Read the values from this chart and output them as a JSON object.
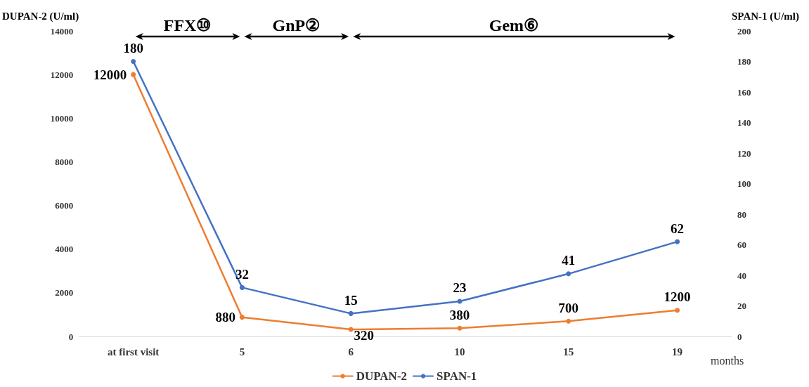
{
  "chart_data": {
    "type": "line",
    "categories": [
      "at first visit",
      "5",
      "6",
      "10",
      "15",
      "19"
    ],
    "xlabel": "months",
    "ylabel": "DUPAN-2 (U/ml)",
    "y2label": "SPAN-1 (U/ml)",
    "series": [
      {
        "name": "DUPAN-2",
        "color": "#ed7d31",
        "values": [
          12000,
          880,
          320,
          380,
          700,
          1200
        ]
      },
      {
        "name": "SPAN-1",
        "color": "#4472c4",
        "axis": "y2",
        "values": [
          180,
          32,
          15,
          23,
          41,
          62
        ]
      }
    ],
    "ylim": [
      0,
      14000
    ],
    "yticks": [
      0,
      2000,
      4000,
      6000,
      8000,
      10000,
      12000,
      14000
    ],
    "y2lim": [
      0,
      200
    ],
    "y2ticks": [
      0,
      20,
      40,
      60,
      80,
      100,
      120,
      140,
      160,
      180,
      200
    ],
    "annotations": [
      "FFX⑩",
      "GnP②",
      "Gem⑥"
    ],
    "data_labels": true,
    "legend": "bottom",
    "marker": "circle",
    "line_style": "solid",
    "grid": false
  }
}
